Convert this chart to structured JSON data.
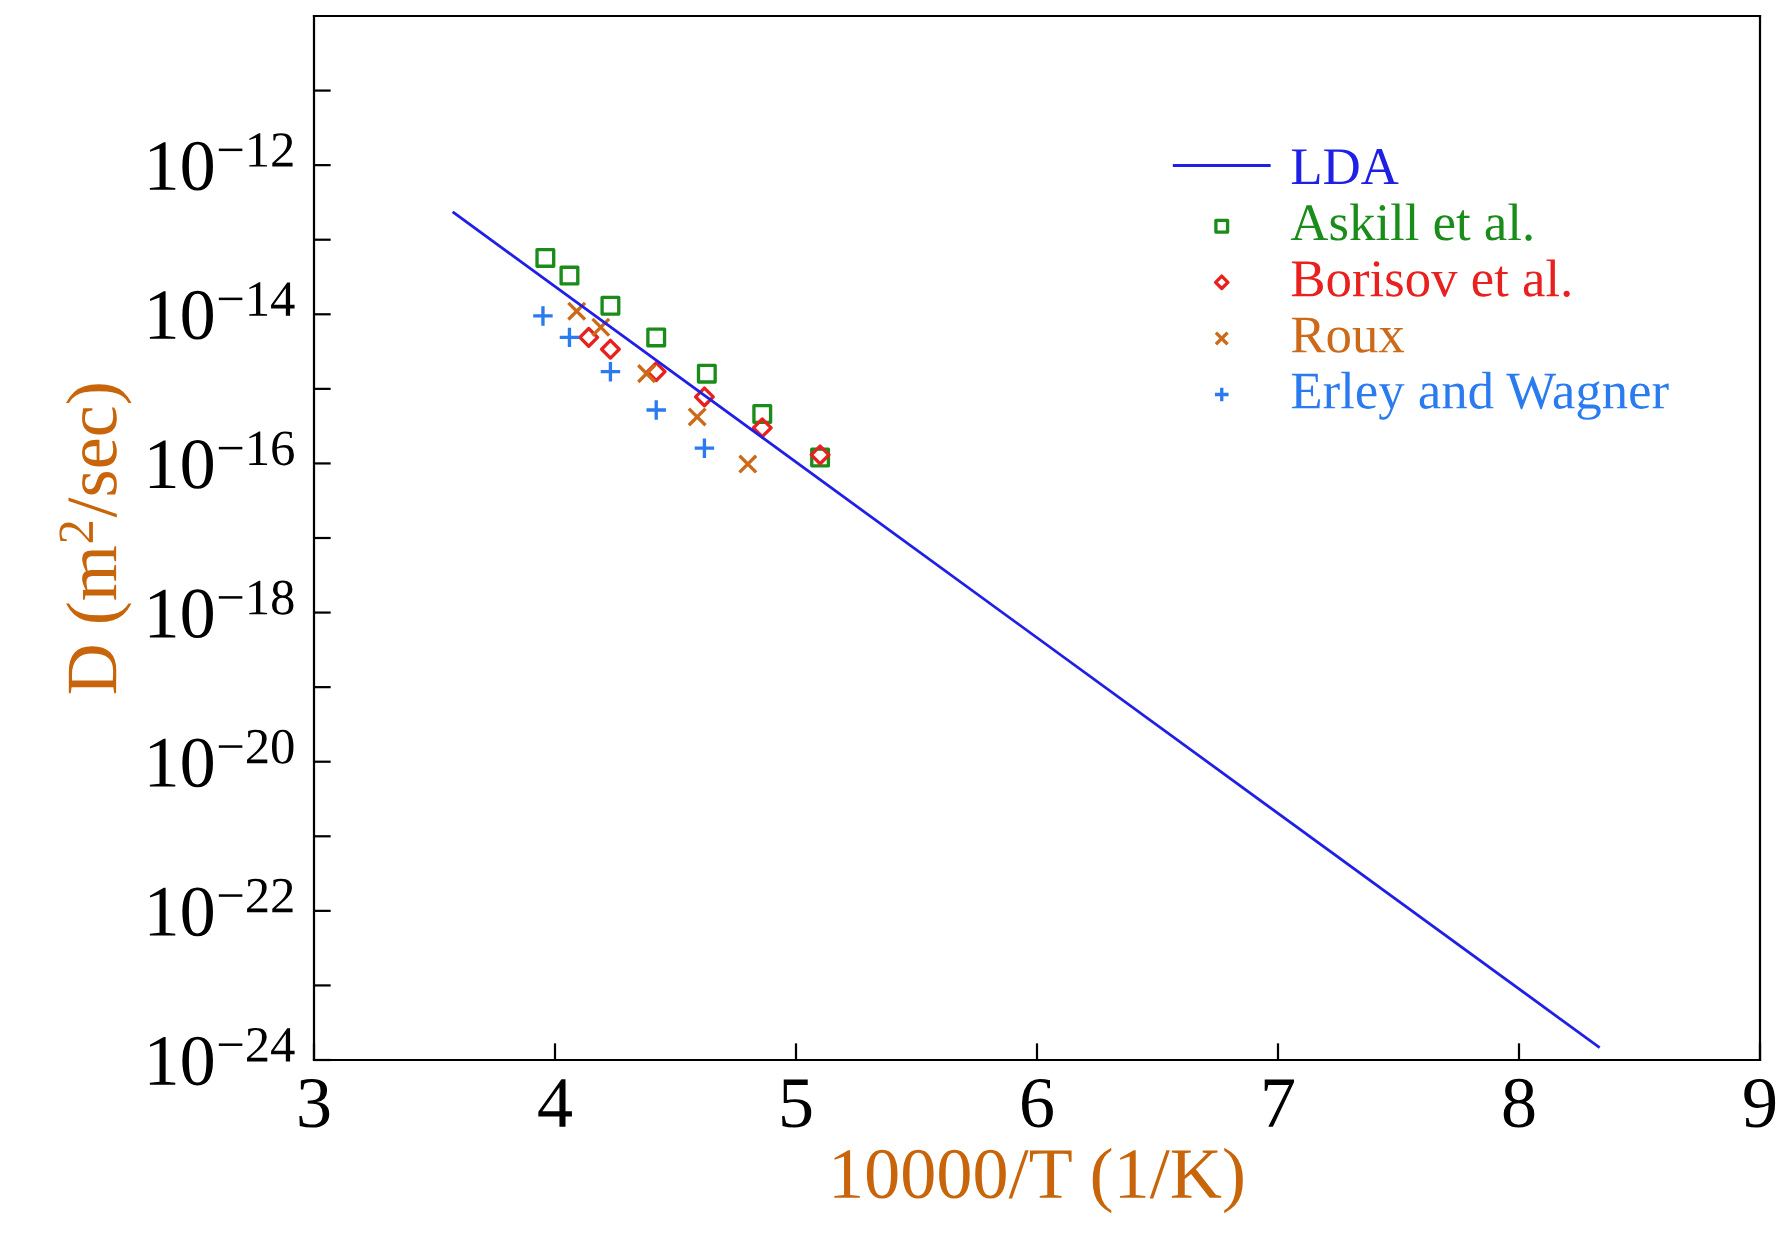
{
  "chart_data": {
    "type": "scatter",
    "xlabel": "10000/T (1/K)",
    "ylabel": "D (m$^{2}$/sec)",
    "log": "y",
    "grid": false,
    "legend": "top right",
    "xlim": [
      3,
      9
    ],
    "xticks": [
      3,
      4,
      5,
      6,
      7,
      8,
      9
    ],
    "ylim": [
      1e-24,
      1e-10
    ],
    "yticks": [
      {
        "value": 1e-24,
        "label": "10$^{−24}$"
      },
      {
        "value": 1e-23,
        "label": null
      },
      {
        "value": 1e-22,
        "label": "10$^{−22}$"
      },
      {
        "value": 1e-21,
        "label": null
      },
      {
        "value": 1e-20,
        "label": "10$^{−20}$"
      },
      {
        "value": 1e-19,
        "label": null
      },
      {
        "value": 1e-18,
        "label": "10$^{−18}$"
      },
      {
        "value": 1e-17,
        "label": null
      },
      {
        "value": 1e-16,
        "label": "10$^{−16}$"
      },
      {
        "value": 1e-15,
        "label": null
      },
      {
        "value": 1e-14,
        "label": "10$^{−14}$"
      },
      {
        "value": 1e-13,
        "label": null
      },
      {
        "value": 1e-12,
        "label": "10$^{−12}$"
      },
      {
        "value": 1e-11,
        "label": null
      }
    ],
    "series": [
      {
        "name": "LDA",
        "type": "line",
        "color": "#1f1fe6",
        "marker": "none",
        "line_style": "solid",
        "x": [
          3.58,
          8.33
        ],
        "values": [
          2.3e-13,
          1.5e-24
        ]
      },
      {
        "name": "Askill et al.",
        "color": "#1a8c1a",
        "marker": "square",
        "x": [
          3.96,
          4.06,
          4.23,
          4.42,
          4.63,
          4.86,
          5.1
        ],
        "values": [
          5.7e-14,
          3.3e-14,
          1.3e-14,
          4.9e-15,
          1.6e-15,
          4.6e-16,
          1.2e-16
        ]
      },
      {
        "name": "Borisov et al.",
        "color": "#e8201e",
        "marker": "diamond",
        "x": [
          4.14,
          4.23,
          4.42,
          4.62,
          4.86,
          5.1
        ],
        "values": [
          4.9e-15,
          3.4e-15,
          1.7e-15,
          7.8e-16,
          3e-16,
          1.3e-16
        ]
      },
      {
        "name": "Roux",
        "color": "#cc6a1a",
        "marker": "cross",
        "x": [
          4.09,
          4.19,
          4.38,
          4.59,
          4.8
        ],
        "values": [
          1.1e-14,
          6.7e-15,
          1.6e-15,
          4.2e-16,
          9.8e-17
        ]
      },
      {
        "name": "Erley and Wagner",
        "color": "#2a7af0",
        "marker": "plus",
        "x": [
          3.95,
          4.06,
          4.23,
          4.42,
          4.62
        ],
        "values": [
          9.5e-15,
          4.9e-15,
          1.7e-15,
          5.2e-16,
          1.6e-16
        ]
      }
    ]
  }
}
